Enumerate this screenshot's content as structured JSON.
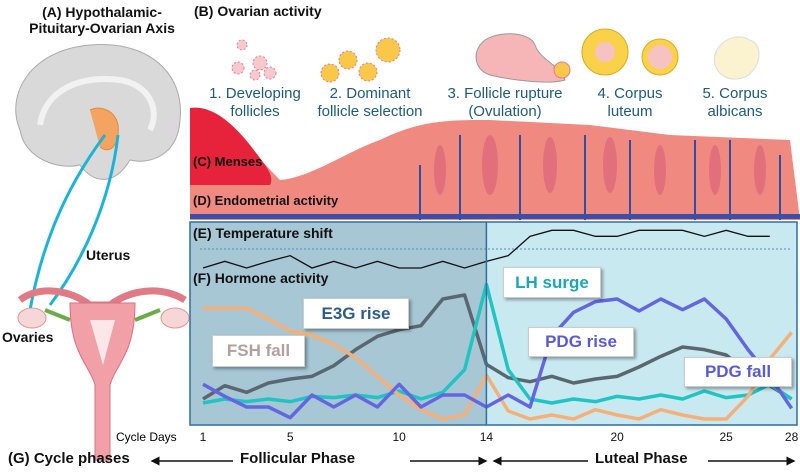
{
  "panel_a": {
    "title_line1": "(A) Hypothalamic-",
    "title_line2": "Pituitary-Ovarian Axis",
    "uterus_label": "Uterus",
    "ovaries_label": "Ovaries"
  },
  "panel_b": {
    "title": "(B) Ovarian activity",
    "stages": [
      {
        "line1": "1. Developing",
        "line2": "follicles"
      },
      {
        "line1": "2. Dominant",
        "line2": "follicle selection"
      },
      {
        "line1": "3. Follicle rupture",
        "line2": "(Ovulation)"
      },
      {
        "line1": "4. Corpus",
        "line2": "luteum"
      },
      {
        "line1": "5. Corpus",
        "line2": "albicans"
      }
    ]
  },
  "panel_c": {
    "title": "(C) Menses"
  },
  "panel_d": {
    "title": "(D) Endometrial activity"
  },
  "panel_e": {
    "title": "(E) Temperature shift"
  },
  "panel_f": {
    "title": "(F) Hormone activity",
    "labels": {
      "lh": "LH surge",
      "e3g": "E3G rise",
      "fsh": "FSH fall",
      "pdg_rise": "PDG rise",
      "pdg_fall": "PDG fall"
    }
  },
  "panel_g": {
    "title": "(G) Cycle phases",
    "follicular": "Follicular Phase",
    "luteal": "Luteal Phase"
  },
  "axis": {
    "label": "Cycle Days",
    "ticks": [
      "1",
      "5",
      "10",
      "14",
      "20",
      "25",
      "28"
    ]
  },
  "colors": {
    "follicular_bg": "#a7c7d5",
    "luteal_bg": "#c9e9f0",
    "frame": "#2f6ea3",
    "e3g": "#5b6770",
    "lh": "#22c3c3",
    "fsh": "#f5b07a",
    "pdg": "#6466e0",
    "temperature": "#111111"
  },
  "chart_data": {
    "type": "line",
    "xlabel": "Cycle Days",
    "x_ticks": [
      1,
      5,
      10,
      14,
      20,
      25,
      28
    ],
    "ovulation_day": 14,
    "temperature": {
      "days": [
        1,
        2,
        3,
        4,
        5,
        6,
        7,
        8,
        9,
        10,
        11,
        12,
        13,
        14,
        15,
        16,
        17,
        18,
        19,
        20,
        21,
        22,
        23,
        24,
        25,
        26,
        27
      ],
      "values": [
        0,
        20,
        0,
        20,
        37,
        0,
        20,
        0,
        20,
        0,
        0,
        20,
        0,
        20,
        37,
        95,
        113,
        113,
        95,
        95,
        113,
        113,
        113,
        95,
        113,
        95,
        95
      ],
      "threshold": 57
    },
    "series": [
      {
        "name": "E3G",
        "color": "#5b6770",
        "values": [
          18,
          28,
          23,
          30,
          33,
          35,
          43,
          55,
          65,
          70,
          73,
          93,
          96,
          44,
          34,
          31,
          35,
          30,
          33,
          35,
          42,
          50,
          57,
          55,
          51,
          38,
          28,
          18
        ]
      },
      {
        "name": "LH",
        "color": "#22c3c3",
        "values": [
          15,
          18,
          16,
          18,
          16,
          20,
          19,
          21,
          19,
          24,
          18,
          23,
          40,
          104,
          40,
          18,
          15,
          18,
          16,
          20,
          18,
          21,
          18,
          24,
          19,
          21,
          29,
          18
        ]
      },
      {
        "name": "FSH",
        "color": "#f5b07a",
        "values": [
          86,
          86,
          86,
          78,
          69,
          66,
          59,
          49,
          35,
          21,
          10,
          3,
          6,
          36,
          9,
          3,
          6,
          3,
          10,
          6,
          3,
          10,
          6,
          3,
          3,
          20,
          48,
          68
        ]
      },
      {
        "name": "PDG",
        "color": "#6466e0",
        "values": [
          29,
          20,
          12,
          12,
          4,
          21,
          12,
          21,
          12,
          29,
          12,
          21,
          21,
          12,
          21,
          12,
          65,
          83,
          91,
          93,
          84,
          93,
          85,
          93,
          78,
          55,
          35,
          11
        ]
      }
    ]
  }
}
